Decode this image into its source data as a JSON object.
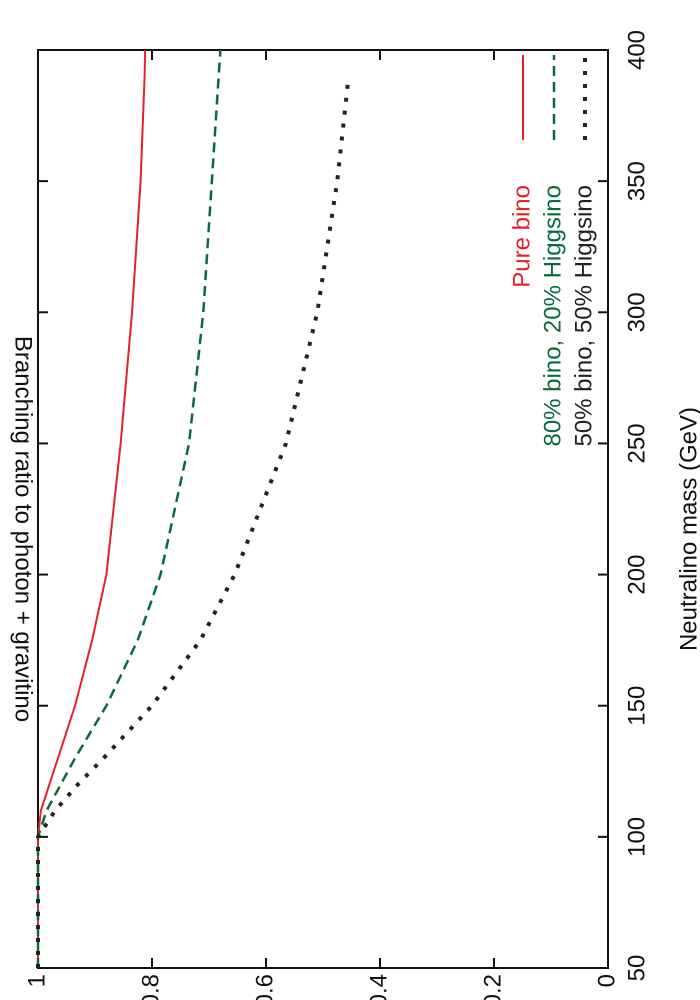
{
  "chart_data": {
    "type": "line",
    "x_label": "Neutralino mass  (GeV)",
    "y_label": "Branching ratio to photon + gravitino",
    "x": [
      50,
      100,
      110,
      120,
      130,
      150,
      175,
      200,
      250,
      300,
      350,
      390,
      400
    ],
    "series": [
      {
        "name": "Pure bino",
        "color": "#e3222b",
        "values": [
          1,
          1,
          0.995,
          0.98,
          0.965,
          0.935,
          0.905,
          0.88,
          0.855,
          0.835,
          0.82,
          0.813,
          0.812
        ]
      },
      {
        "name": "80% bino, 20% Higgsino",
        "color": "#0b6b36",
        "values": [
          1,
          1,
          0.985,
          0.96,
          0.935,
          0.88,
          0.825,
          0.785,
          0.735,
          0.71,
          0.695,
          0.683,
          0.68
        ]
      },
      {
        "name": "50% bino, 50% Higgsino",
        "color": "#222222",
        "values": [
          1,
          1,
          0.97,
          0.93,
          0.885,
          0.8,
          0.715,
          0.655,
          0.565,
          0.51,
          0.475,
          0.455,
          null
        ]
      }
    ],
    "xlim": [
      50,
      400
    ],
    "xticks": [
      50,
      100,
      150,
      200,
      250,
      300,
      350,
      400
    ],
    "ylim": [
      0,
      1
    ],
    "yticks": [
      0,
      0.2,
      0.4,
      0.6,
      0.8,
      1
    ],
    "legend": "lower right",
    "grid": false
  }
}
